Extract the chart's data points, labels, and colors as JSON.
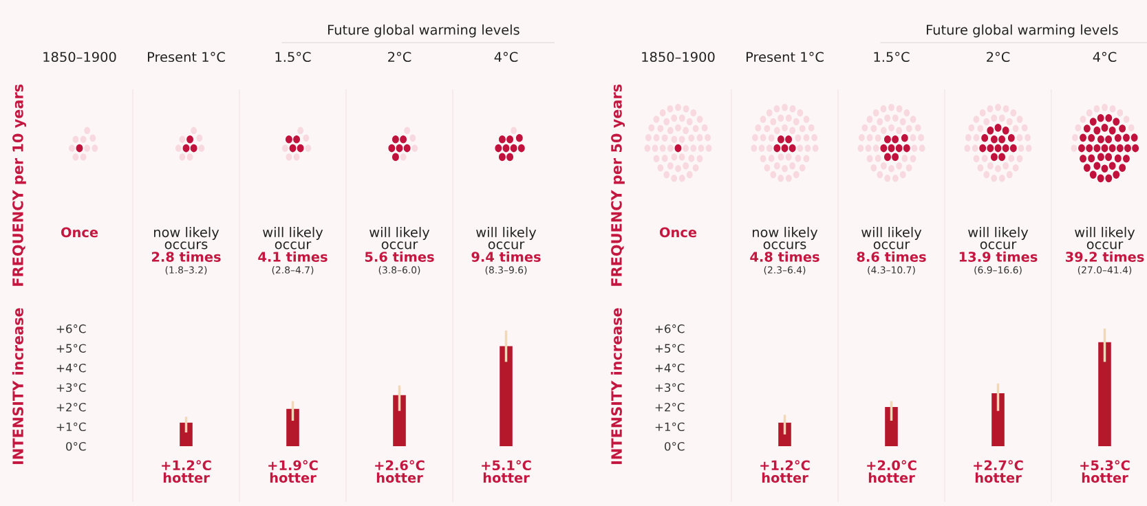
{
  "chart_data": [
    {
      "type": "bar",
      "categories": [
        "1850–1900",
        "Present 1°C",
        "1.5°C",
        "2°C",
        "4°C"
      ],
      "ylabel": "INTENSITY increase",
      "values": [
        null,
        1.2,
        1.9,
        2.6,
        5.1
      ],
      "color": "#b5172b",
      "errors": [
        null,
        [
          0.7,
          1.5
        ],
        [
          1.3,
          2.3
        ],
        [
          1.8,
          3.1
        ],
        [
          4.3,
          5.9
        ]
      ],
      "value_labels": [
        null,
        "+1.2°C\nhotter",
        "+1.9°C\nhotter",
        "+2.6°C\nhotter",
        "+5.1°C\nhotter"
      ],
      "yticks": [
        {
          "value": 0,
          "label": "0°C"
        },
        {
          "value": 1,
          "label": "+1°C"
        },
        {
          "value": 2,
          "label": "+2°C"
        },
        {
          "value": 3,
          "label": "+3°C"
        },
        {
          "value": 4,
          "label": "+4°C"
        },
        {
          "value": 5,
          "label": "+5°C"
        },
        {
          "value": 6,
          "label": "+6°C"
        }
      ],
      "ylim": [
        -2.84,
        18.2
      ],
      "annotations": [
        "Future global warming levels",
        "FREQUENCY per 10 years",
        "Once",
        "now likely\noccurs",
        "2.8 times",
        "(1.8–3.2)",
        "will likely\noccur",
        "4.1 times",
        "(2.8–4.7)",
        "will likely\noccur",
        "5.6 times",
        "(3.8–6.0)",
        "will likely\noccur",
        "9.4 times",
        "(8.3–9.6)"
      ]
    },
    {
      "type": "bar",
      "categories": [
        "1850–1900",
        "Present 1°C",
        "1.5°C",
        "2°C",
        "4°C"
      ],
      "ylabel": "INTENSITY increase",
      "values": [
        null,
        1.2,
        2.0,
        2.7,
        5.3
      ],
      "color": "#b5172b",
      "errors": [
        null,
        [
          0.6,
          1.6
        ],
        [
          1.3,
          2.3
        ],
        [
          1.8,
          3.2
        ],
        [
          4.3,
          6.0
        ]
      ],
      "value_labels": [
        null,
        "+1.2°C\nhotter",
        "+2.0°C\nhotter",
        "+2.7°C\nhotter",
        "+5.3°C\nhotter"
      ],
      "yticks": [
        {
          "value": 0,
          "label": "0°C"
        },
        {
          "value": 1,
          "label": "+1°C"
        },
        {
          "value": 2,
          "label": "+2°C"
        },
        {
          "value": 3,
          "label": "+3°C"
        },
        {
          "value": 4,
          "label": "+4°C"
        },
        {
          "value": 5,
          "label": "+5°C"
        },
        {
          "value": 6,
          "label": "+6°C"
        }
      ],
      "ylim": [
        -2.84,
        18.2
      ],
      "annotations": [
        "Future global warming levels",
        "FREQUENCY per 50 years",
        "Once",
        "now likely\noccurs",
        "4.8 times",
        "(2.3–6.4)",
        "will likely\noccur",
        "8.6 times",
        "(4.3–10.7)",
        "will likely\noccur",
        "13.9 times",
        "(6.9–16.6)",
        "will likely\noccur",
        "39.2 times",
        "(27.0–41.4)"
      ]
    }
  ]
}
